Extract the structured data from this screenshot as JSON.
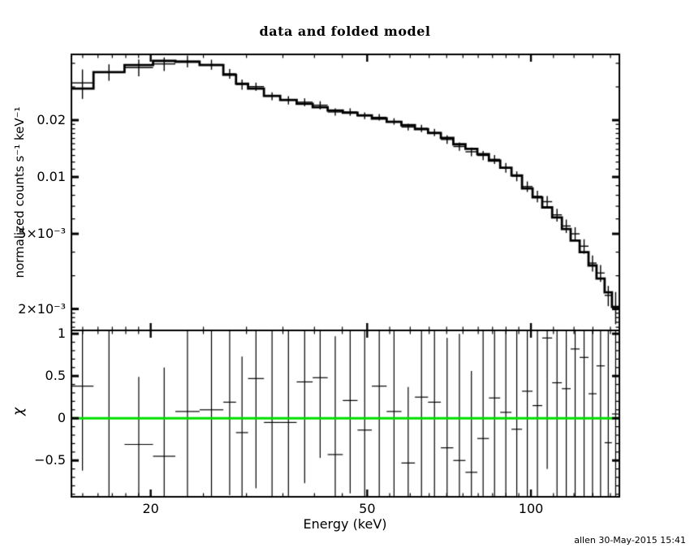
{
  "figure": {
    "title": "data and folded model",
    "xlabel": "Energy (keV)",
    "watermark": "allen 30-May-2015 15:41",
    "background_color": "#ffffff",
    "foreground_color": "#000000",
    "zero_line_color": "#00e000"
  },
  "chart_data": [
    {
      "type": "line",
      "panel": "top",
      "description": "spectrum: data points with error bars (thin crosses) and folded model (thick stepped histogram)",
      "ylabel": "normalized counts s⁻¹ keV⁻¹",
      "xscale": "log",
      "yscale": "log",
      "xlim": [
        14.3,
        145.4
      ],
      "ylim": [
        0.00154,
        0.0446
      ],
      "x_bin_edges_keV": [
        14.3,
        15.7,
        17.9,
        20.2,
        22.2,
        24.6,
        27.2,
        28.7,
        30.2,
        32.3,
        34.6,
        37.1,
        39.7,
        42.3,
        45.1,
        48.0,
        51.0,
        54.3,
        57.8,
        61.2,
        64.7,
        68.3,
        72.0,
        75.8,
        79.7,
        83.7,
        87.8,
        92.1,
        96.3,
        100.7,
        104.9,
        109.4,
        114.0,
        118.3,
        122.9,
        127.6,
        132.0,
        136.6,
        140.9,
        145.4
      ],
      "series": [
        {
          "name": "folded model",
          "style": "step-histogram",
          "values": [
            0.0294,
            0.0359,
            0.0392,
            0.0412,
            0.0408,
            0.0392,
            0.0348,
            0.0312,
            0.0294,
            0.0269,
            0.0256,
            0.0244,
            0.0234,
            0.0225,
            0.0219,
            0.0212,
            0.0204,
            0.0196,
            0.0188,
            0.0179,
            0.0171,
            0.0161,
            0.0149,
            0.0141,
            0.0132,
            0.0122,
            0.0112,
            0.0102,
            0.0087,
            0.0078,
            0.0069,
            0.0061,
            0.0053,
            0.0046,
            0.004,
            0.0034,
            0.0029,
            0.00245,
            0.00205
          ]
        },
        {
          "name": "data",
          "style": "errorbar-cross",
          "values": [
            0.0315,
            0.0359,
            0.038,
            0.0397,
            0.041,
            0.0394,
            0.0352,
            0.0309,
            0.0301,
            0.0268,
            0.0255,
            0.0249,
            0.024,
            0.0221,
            0.0221,
            0.0211,
            0.0207,
            0.0197,
            0.0184,
            0.0181,
            0.0172,
            0.0158,
            0.0145,
            0.0136,
            0.013,
            0.0124,
            0.0112,
            0.0101,
            0.0089,
            0.0079,
            0.0074,
            0.0063,
            0.0055,
            0.005,
            0.0043,
            0.0035,
            0.0031,
            0.00236,
            0.00206
          ],
          "errors": [
            0.0056,
            0.0036,
            0.0039,
            0.0033,
            0.0029,
            0.0024,
            0.0021,
            0.0019,
            0.0015,
            0.0013,
            0.0013,
            0.0012,
            0.0012,
            0.001,
            0.001,
            0.00085,
            0.00082,
            0.00078,
            0.00075,
            0.00081,
            0.00077,
            0.00081,
            0.00075,
            0.00071,
            0.00073,
            0.00067,
            0.00067,
            0.00061,
            0.00057,
            0.00055,
            0.00052,
            0.00049,
            0.00045,
            0.00042,
            0.00038,
            0.00034,
            0.00032,
            0.00029,
            0.0004
          ]
        }
      ],
      "xticks_major": [
        {
          "value": 20,
          "label": "20"
        },
        {
          "value": 50,
          "label": "50"
        },
        {
          "value": 100,
          "label": "100"
        }
      ],
      "xticks_minor": [
        15,
        16,
        17,
        18,
        19,
        25,
        30,
        35,
        40,
        45,
        55,
        60,
        65,
        70,
        75,
        80,
        85,
        90,
        95,
        110,
        120,
        130,
        140
      ],
      "yticks_major": [
        {
          "value": 0.02,
          "label": "0.02"
        },
        {
          "value": 0.01,
          "label": "0.01"
        },
        {
          "value": 0.005,
          "label": "5×10⁻³"
        },
        {
          "value": 0.002,
          "label": "2×10⁻³"
        }
      ],
      "yticks_minor": [
        0.04,
        0.03,
        0.019,
        0.018,
        0.017,
        0.016,
        0.015,
        0.014,
        0.013,
        0.012,
        0.011,
        0.009,
        0.008,
        0.007,
        0.006,
        0.004,
        0.003,
        0.0019,
        0.0018,
        0.0017,
        0.0016
      ],
      "grid": false,
      "legend": false
    },
    {
      "type": "scatter",
      "panel": "bottom",
      "description": "fit residuals chi with error bars and green zero line",
      "ylabel": "χ",
      "xscale": "log",
      "yscale": "linear",
      "xlim": [
        14.3,
        145.4
      ],
      "ylim": [
        -0.93,
        1.04
      ],
      "values_chi": [
        0.38,
        0.0,
        -0.31,
        -0.45,
        0.08,
        0.1,
        0.19,
        -0.17,
        0.47,
        -0.05,
        -0.05,
        0.43,
        0.48,
        -0.43,
        0.21,
        -0.14,
        0.38,
        0.08,
        -0.53,
        0.25,
        0.19,
        -0.35,
        -0.5,
        -0.64,
        -0.24,
        0.24,
        0.07,
        -0.13,
        0.32,
        0.15,
        0.95,
        0.42,
        0.35,
        0.82,
        0.72,
        0.29,
        0.62,
        -0.29,
        0.05
      ],
      "errors_chi": [
        1.0,
        1.6,
        0.8,
        1.05,
        1.5,
        1.6,
        1.1,
        0.9,
        1.3,
        1.55,
        1.5,
        1.2,
        0.95,
        1.4,
        1.1,
        1.3,
        1.5,
        1.0,
        0.9,
        1.4,
        1.6,
        1.3,
        1.5,
        1.2,
        1.6,
        1.5,
        1.7,
        1.4,
        1.6,
        1.8,
        1.55,
        1.7,
        1.6,
        1.9,
        1.75,
        1.65,
        1.8,
        1.7,
        1.9
      ],
      "zero_line_y": 0,
      "yticks_major": [
        {
          "value": 1,
          "label": "1"
        },
        {
          "value": 0.5,
          "label": "0.5"
        },
        {
          "value": 0,
          "label": "0"
        },
        {
          "value": -0.5,
          "label": "−0.5"
        }
      ],
      "yticks_minor_step": 0.1
    }
  ]
}
